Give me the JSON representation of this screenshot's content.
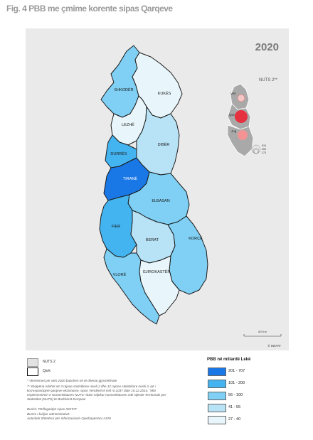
{
  "title": "Fig. 4 PBB me çmime korente sipas Qarqeve",
  "year": "2020",
  "nuts_label": "NUTS 2**",
  "scale_label": "60 Km",
  "credit": "© INSTAT",
  "colors": {
    "c1": "#1a78e6",
    "c2": "#44b4f0",
    "c3": "#7fd0f4",
    "c4": "#b8e3f6",
    "c5": "#e8f6fb",
    "bg": "#eaeaea",
    "nuts": "#e63240"
  },
  "regions": [
    {
      "name": "SHKODËR",
      "class": "c3"
    },
    {
      "name": "KUKËS",
      "class": "c5"
    },
    {
      "name": "LEZHË",
      "class": "c5"
    },
    {
      "name": "DIBËR",
      "class": "c4"
    },
    {
      "name": "DURRËS",
      "class": "c2"
    },
    {
      "name": "TIRANË",
      "class": "c1"
    },
    {
      "name": "ELBASAN",
      "class": "c3"
    },
    {
      "name": "FIER",
      "class": "c2"
    },
    {
      "name": "BERAT",
      "class": "c4"
    },
    {
      "name": "KORÇË",
      "class": "c3"
    },
    {
      "name": "VLORË",
      "class": "c3"
    },
    {
      "name": "GJIROKASTËR",
      "class": "c5"
    }
  ],
  "inset": {
    "regions": [
      "Veri",
      "Qendër",
      "Jug"
    ],
    "bubble_values": [
      "819",
      "453",
      "373"
    ]
  },
  "legend": {
    "nuts2": "NUTS 2",
    "qark": "Qark",
    "pbb_title": "PBB në miliardë Lekë",
    "classes": [
      {
        "label": "201 - 707",
        "color": "#1a78e6"
      },
      {
        "label": "101 - 200",
        "color": "#44b4f0"
      },
      {
        "label": "56 - 100",
        "color": "#7fd0f4"
      },
      {
        "label": "41 - 55",
        "color": "#b8e3f6"
      },
      {
        "label": "27 - 40",
        "color": "#e8f6fb"
      }
    ]
  },
  "notes": {
    "n1": "* Vlerësimet për vitin 2020 bazohen në të dhënat gjysmëfinale",
    "n2": "** Shqipëria ndahet në 3 rajone statistikore niveli 2 dhe 12 rajone statistikore niveli 3, që i korrespondojnë qarqeve ekzistuese, sipas Vendimit të KM nr.1037 date 15.12.2010, \"Mbi Implementimin e Nomenklaturës NUTS\" duke ndjekur nomenklaturën mbi Njësitë Territoriale për Statistikat (NUTS) të Bashkimit Evropian",
    "n3": "Burimi: Përllogaritjet sipas INSTAT",
    "n4": "Burimi i kufijve administrativë:",
    "n5": "Autoriteti Shtetëror për Informacionin Gjeohapësinor ASIG"
  }
}
